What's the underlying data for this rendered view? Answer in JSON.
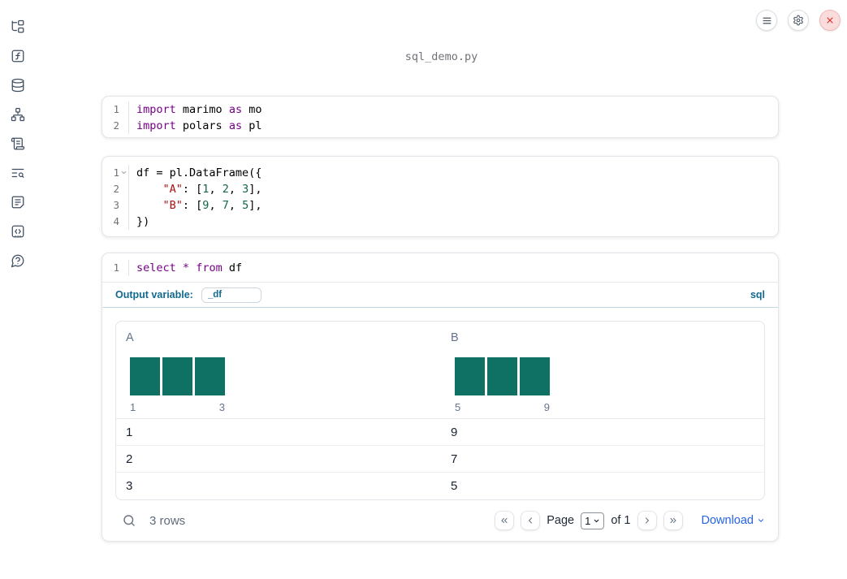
{
  "window": {
    "title": "sql_demo.py"
  },
  "topbar": {
    "buttons": [
      {
        "icon": "menu-icon"
      },
      {
        "icon": "gear-icon"
      },
      {
        "icon": "shutdown-icon"
      }
    ]
  },
  "sidebar": {
    "icons": [
      "file-tree",
      "functions",
      "datasources",
      "dependency-graph",
      "logs",
      "search-logs",
      "documentation",
      "snippets",
      "help"
    ]
  },
  "cells": [
    {
      "type": "python",
      "lines": [
        {
          "num": "1",
          "tokens": [
            {
              "t": "kw",
              "v": "import"
            },
            {
              "t": "pl",
              "v": " marimo "
            },
            {
              "t": "kw",
              "v": "as"
            },
            {
              "t": "pl",
              "v": " mo"
            }
          ]
        },
        {
          "num": "2",
          "tokens": [
            {
              "t": "kw",
              "v": "import"
            },
            {
              "t": "pl",
              "v": " polars "
            },
            {
              "t": "kw",
              "v": "as"
            },
            {
              "t": "pl",
              "v": " pl"
            }
          ]
        }
      ]
    },
    {
      "type": "python",
      "lines": [
        {
          "num": "1",
          "fold": true,
          "tokens": [
            {
              "t": "pl",
              "v": "df = pl.DataFrame({"
            }
          ]
        },
        {
          "num": "2",
          "tokens": [
            {
              "t": "pl",
              "v": "    "
            },
            {
              "t": "str",
              "v": "\"A\""
            },
            {
              "t": "pl",
              "v": ": ["
            },
            {
              "t": "num",
              "v": "1"
            },
            {
              "t": "pl",
              "v": ", "
            },
            {
              "t": "num",
              "v": "2"
            },
            {
              "t": "pl",
              "v": ", "
            },
            {
              "t": "num",
              "v": "3"
            },
            {
              "t": "pl",
              "v": "],"
            }
          ]
        },
        {
          "num": "3",
          "tokens": [
            {
              "t": "pl",
              "v": "    "
            },
            {
              "t": "str",
              "v": "\"B\""
            },
            {
              "t": "pl",
              "v": ": ["
            },
            {
              "t": "num",
              "v": "9"
            },
            {
              "t": "pl",
              "v": ", "
            },
            {
              "t": "num",
              "v": "7"
            },
            {
              "t": "pl",
              "v": ", "
            },
            {
              "t": "num",
              "v": "5"
            },
            {
              "t": "pl",
              "v": "],"
            }
          ]
        },
        {
          "num": "4",
          "tokens": [
            {
              "t": "pl",
              "v": "})"
            }
          ]
        }
      ]
    },
    {
      "type": "sql",
      "lines": [
        {
          "num": "1",
          "tokens": [
            {
              "t": "kw",
              "v": "select"
            },
            {
              "t": "pl",
              "v": " "
            },
            {
              "t": "kw",
              "v": "*"
            },
            {
              "t": "pl",
              "v": " "
            },
            {
              "t": "kw",
              "v": "from"
            },
            {
              "t": "pl",
              "v": " df"
            }
          ]
        }
      ],
      "output_variable_label": "Output variable:",
      "output_variable_value": "_df",
      "language_tag": "sql"
    }
  ],
  "table": {
    "columns": [
      {
        "name": "A",
        "histogram": {
          "bars": 3,
          "tick_min": "1",
          "tick_max": "3"
        }
      },
      {
        "name": "B",
        "histogram": {
          "bars": 3,
          "tick_min": "5",
          "tick_max": "9"
        }
      }
    ],
    "rows": [
      [
        "1",
        "9"
      ],
      [
        "2",
        "7"
      ],
      [
        "3",
        "5"
      ]
    ],
    "row_count_label": "3 rows",
    "pagination": {
      "page_label": "Page",
      "page_value": "1",
      "of_label": "of 1"
    },
    "download_label": "Download"
  },
  "colors": {
    "histogram_bar": "#0e7163",
    "sql_accent": "#11698e",
    "link_blue": "#2563eb",
    "keyword": "#770088",
    "string": "#aa1111",
    "number": "#116644"
  }
}
